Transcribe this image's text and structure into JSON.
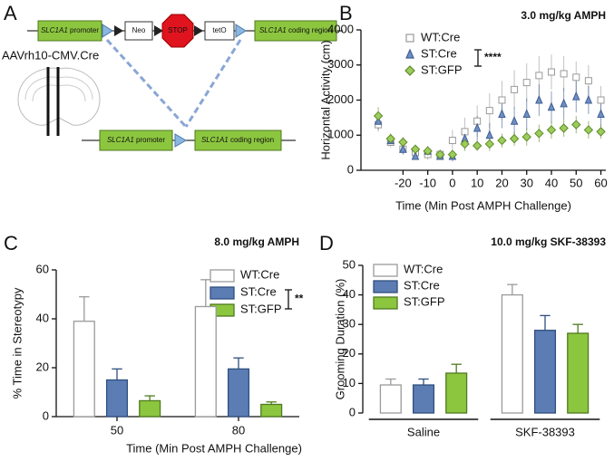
{
  "diagram": {
    "panel_label": "A",
    "top": {
      "promoter": {
        "gene": "SLC1A1",
        "text": "promoter"
      },
      "neo": "Neo",
      "stop": "STOP",
      "teto": "tetO",
      "coding": {
        "gene": "SLC1A1",
        "text": "coding region"
      }
    },
    "virus": "AAVrh10-CMV.Cre",
    "bottom": {
      "promoter": {
        "gene": "SLC1A1",
        "text": "promoter"
      },
      "coding": {
        "gene": "SLC1A1",
        "text": "coding region"
      }
    }
  },
  "chart_data": [
    {
      "type": "scatter",
      "panel_label": "B",
      "title": "3.0 mg/kg AMPH",
      "annotation": "****",
      "x_label": "Time (Min Post AMPH Challenge)",
      "y_label": "Horizontal Activity (cm)",
      "x": [
        -30,
        -25,
        -20,
        -15,
        -10,
        -5,
        0,
        5,
        10,
        15,
        20,
        25,
        30,
        35,
        40,
        45,
        50,
        55,
        60
      ],
      "xlim": [
        -37,
        62
      ],
      "xticks": [
        -20,
        -10,
        0,
        10,
        20,
        30,
        40,
        50,
        60
      ],
      "ylim": [
        0,
        4000
      ],
      "yticks": [
        0,
        1000,
        2000,
        3000,
        4000
      ],
      "series": [
        {
          "name": "WT:Cre",
          "color": "#ffffff",
          "stroke": "#9a9a9a",
          "marker": "square",
          "values": [
            1300,
            800,
            600,
            500,
            450,
            450,
            850,
            1100,
            1400,
            1700,
            2000,
            2300,
            2500,
            2700,
            2800,
            2750,
            2650,
            2550,
            2000
          ],
          "errors": [
            200,
            150,
            150,
            150,
            150,
            150,
            300,
            400,
            450,
            500,
            550,
            550,
            550,
            550,
            500,
            500,
            450,
            450,
            400
          ]
        },
        {
          "name": "ST:Cre",
          "color": "#6f8fc4",
          "stroke": "#3f5f94",
          "marker": "triangle",
          "values": [
            1400,
            850,
            600,
            400,
            550,
            400,
            400,
            900,
            1200,
            1000,
            1600,
            1400,
            1600,
            2000,
            1800,
            1900,
            2100,
            2000,
            1600
          ],
          "errors": [
            250,
            150,
            150,
            100,
            100,
            100,
            150,
            300,
            350,
            350,
            400,
            400,
            450,
            450,
            450,
            450,
            450,
            400,
            350
          ]
        },
        {
          "name": "ST:GFP",
          "color": "#9ccc5a",
          "stroke": "#5f8a2a",
          "marker": "diamond",
          "values": [
            1550,
            900,
            800,
            600,
            550,
            450,
            450,
            750,
            700,
            750,
            850,
            900,
            950,
            1050,
            1150,
            1200,
            1300,
            1150,
            1100
          ],
          "errors": [
            250,
            150,
            150,
            100,
            100,
            100,
            100,
            200,
            150,
            200,
            200,
            200,
            250,
            250,
            250,
            250,
            250,
            250,
            200
          ]
        }
      ]
    },
    {
      "type": "bar",
      "panel_label": "C",
      "title": "8.0 mg/kg AMPH",
      "annotation": "**",
      "x_label": "Time (Min Post AMPH Challenge)",
      "y_label": "% Time in Stereotypy",
      "categories": [
        "50",
        "80"
      ],
      "ylim": [
        0,
        60
      ],
      "yticks": [
        0,
        20,
        40,
        60
      ],
      "series": [
        {
          "name": "WT:Cre",
          "color": "#ffffff",
          "stroke": "#9a9a9a",
          "values": [
            39,
            45
          ],
          "errors": [
            10,
            11
          ]
        },
        {
          "name": "ST:Cre",
          "color": "#5b7db3",
          "stroke": "#2f4f80",
          "values": [
            15,
            19.5
          ],
          "errors": [
            4.5,
            4.5
          ]
        },
        {
          "name": "ST:GFP",
          "color": "#8cc63f",
          "stroke": "#4f7a1e",
          "values": [
            6.5,
            5
          ],
          "errors": [
            2,
            1
          ]
        }
      ]
    },
    {
      "type": "bar",
      "panel_label": "D",
      "title": "10.0 mg/kg SKF-38393",
      "y_label": "Grooming Duration (%)",
      "categories": [
        "Saline",
        "SKF-38393"
      ],
      "ylim": [
        0,
        50
      ],
      "yticks": [
        0,
        10,
        20,
        30,
        40,
        50
      ],
      "series": [
        {
          "name": "WT:Cre",
          "color": "#ffffff",
          "stroke": "#9a9a9a",
          "values": [
            9.5,
            40
          ],
          "errors": [
            2,
            3.5
          ]
        },
        {
          "name": "ST:Cre",
          "color": "#5b7db3",
          "stroke": "#2f4f80",
          "values": [
            9.5,
            28
          ],
          "errors": [
            2,
            5
          ]
        },
        {
          "name": "ST:GFP",
          "color": "#8cc63f",
          "stroke": "#4f7a1e",
          "values": [
            13.5,
            27
          ],
          "errors": [
            3,
            3
          ]
        }
      ]
    }
  ]
}
